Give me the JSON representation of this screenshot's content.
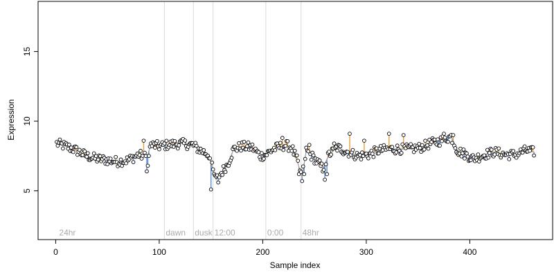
{
  "chart_data": {
    "type": "scatter",
    "title": "",
    "xlabel": "Sample index",
    "ylabel": "Expression",
    "xlim": [
      -17,
      480
    ],
    "ylim": [
      1.5,
      18.6
    ],
    "grid": false,
    "x_ticks": [
      0,
      100,
      200,
      300,
      400
    ],
    "x_tick_labels": [
      "0",
      "100",
      "200",
      "300",
      "400"
    ],
    "y_ticks": [
      5,
      10,
      15
    ],
    "y_tick_labels": [
      "5",
      "10",
      "15"
    ],
    "annotations": [
      {
        "label": "24hr",
        "x": 2
      },
      {
        "label": "dawn",
        "x": 105
      },
      {
        "label": "dusk",
        "x": 133
      },
      {
        "label": "12:00",
        "x": 152
      },
      {
        "label": "0:00",
        "x": 203
      },
      {
        "label": "48hr",
        "x": 237
      }
    ],
    "boundaries": [
      105,
      133,
      152,
      203,
      237
    ],
    "annotation_y": 2.0,
    "colors": {
      "above": "#e69f3a",
      "below": "#5b8fd6",
      "neutral": "#999999",
      "point_stroke": "#000000",
      "point_fill": "#ffffff"
    },
    "keypoints": [
      [
        1,
        8.4
      ],
      [
        10,
        8.2
      ],
      [
        20,
        7.9
      ],
      [
        30,
        7.5
      ],
      [
        40,
        7.3
      ],
      [
        50,
        7.2
      ],
      [
        60,
        7.1
      ],
      [
        70,
        7.2
      ],
      [
        80,
        7.6
      ],
      [
        88,
        7.4
      ],
      [
        92,
        8.3
      ],
      [
        100,
        8.2
      ],
      [
        108,
        8.3
      ],
      [
        120,
        8.4
      ],
      [
        132,
        8.3
      ],
      [
        140,
        7.9
      ],
      [
        148,
        7.6
      ],
      [
        152,
        6.4
      ],
      [
        155,
        5.8
      ],
      [
        160,
        6.3
      ],
      [
        166,
        6.9
      ],
      [
        172,
        8.0
      ],
      [
        180,
        8.2
      ],
      [
        190,
        8.1
      ],
      [
        198,
        7.5
      ],
      [
        203,
        7.6
      ],
      [
        210,
        8.0
      ],
      [
        222,
        8.3
      ],
      [
        228,
        8.1
      ],
      [
        233,
        7.2
      ],
      [
        238,
        6.0
      ],
      [
        242,
        7.9
      ],
      [
        250,
        7.3
      ],
      [
        258,
        6.6
      ],
      [
        264,
        7.6
      ],
      [
        272,
        8.1
      ],
      [
        282,
        7.8
      ],
      [
        292,
        7.5
      ],
      [
        302,
        7.6
      ],
      [
        312,
        7.9
      ],
      [
        322,
        8.0
      ],
      [
        332,
        8.0
      ],
      [
        342,
        8.0
      ],
      [
        352,
        8.1
      ],
      [
        362,
        8.4
      ],
      [
        372,
        8.6
      ],
      [
        382,
        8.9
      ],
      [
        388,
        7.9
      ],
      [
        396,
        7.6
      ],
      [
        404,
        7.3
      ],
      [
        414,
        7.6
      ],
      [
        424,
        7.8
      ],
      [
        434,
        7.6
      ],
      [
        444,
        7.6
      ],
      [
        454,
        7.9
      ],
      [
        461,
        7.8
      ]
    ],
    "outliers": [
      [
        85,
        8.6
      ],
      [
        88,
        6.4
      ],
      [
        89,
        6.8
      ],
      [
        150,
        5.1
      ],
      [
        154,
        6.1
      ],
      [
        157,
        5.6
      ],
      [
        235,
        6.2
      ],
      [
        238,
        5.7
      ],
      [
        240,
        6.2
      ],
      [
        260,
        5.8
      ],
      [
        262,
        6.2
      ],
      [
        284,
        9.1
      ],
      [
        298,
        8.6
      ],
      [
        322,
        9.1
      ],
      [
        336,
        9.0
      ],
      [
        375,
        9.1
      ],
      [
        384,
        9.0
      ],
      [
        219,
        8.8
      ],
      [
        245,
        8.3
      ],
      [
        269,
        8.4
      ]
    ],
    "n_points": 462,
    "noise_amplitude": 0.35
  }
}
